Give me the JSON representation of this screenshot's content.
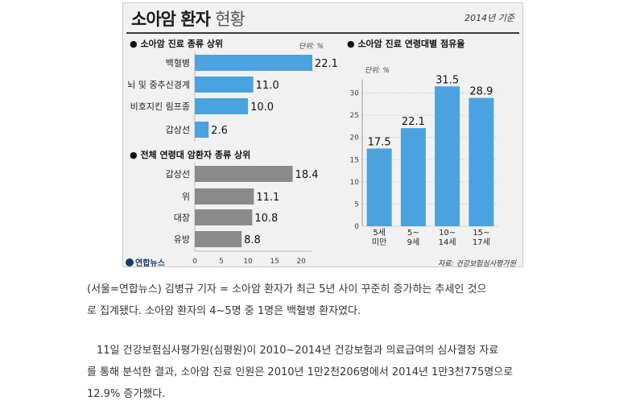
{
  "infographic": {
    "title_main": "소아암 환자",
    "title_light": "현황",
    "basis": "2014년 기준",
    "logo": "연합뉴스",
    "source": "자료: 건강보험심사평가원"
  },
  "chart_data": [
    {
      "type": "bar",
      "orientation": "horizontal",
      "title": "소아암 진료 종류 상위",
      "unit_label": "단위: %",
      "categories": [
        "백혈병",
        "뇌 및 중추신경계",
        "비호지킨 림프종",
        "갑상선"
      ],
      "values": [
        22.1,
        11.0,
        10.0,
        2.6
      ],
      "value_labels": [
        "22.1",
        "11.0",
        "10.0",
        "2.6"
      ],
      "xlim": [
        0,
        22.1
      ],
      "color": "#4aa3df"
    },
    {
      "type": "bar",
      "orientation": "horizontal",
      "title": "전체 연령대 암환자 종류 상위",
      "categories": [
        "갑상선",
        "위",
        "대장",
        "유방"
      ],
      "values": [
        18.4,
        11.1,
        10.8,
        8.8
      ],
      "value_labels": [
        "18.4",
        "11.1",
        "10.8",
        "8.8"
      ],
      "xticks": [
        "0",
        "5",
        "10",
        "15",
        "20"
      ],
      "xlim": [
        0,
        22.1
      ],
      "color": "#8a8a8a"
    },
    {
      "type": "bar",
      "orientation": "vertical",
      "title": "소아암 진료 연령대별 점유율",
      "unit_label": "단위: %",
      "categories": [
        [
          "5세",
          "미만"
        ],
        [
          "5~",
          "9세"
        ],
        [
          "10~",
          "14세"
        ],
        [
          "15~",
          "17세"
        ]
      ],
      "values": [
        17.5,
        22.1,
        31.5,
        28.9
      ],
      "value_labels": [
        "17.5",
        "22.1",
        "31.5",
        "28.9"
      ],
      "yticks": [
        "0",
        "5",
        "10",
        "15",
        "20",
        "25",
        "30"
      ],
      "ylim": [
        0,
        33
      ],
      "grid": true,
      "color": "#4aa3df"
    }
  ],
  "caption": {
    "para1_line1": "(서울=연합뉴스) 김병규 기자 = 소아암 환자가 최근 5년 사이 꾸준히 증가하는 추세인 것으",
    "para1_line2": "로 집계됐다. 소아암 환자의 4~5명 중 1명은 백혈병 환자였다.",
    "para2_line1": "11일 건강보험심사평가원(심평원)이 2010~2014년 건강보험과 의료급여의 심사결정 자료",
    "para2_line2": "를 통해 분석한 결과, 소아암 진료 인원은 2010년 1만2천206명에서 2014년 1만3천775명으로",
    "para2_line3": "12.9% 증가했다."
  }
}
